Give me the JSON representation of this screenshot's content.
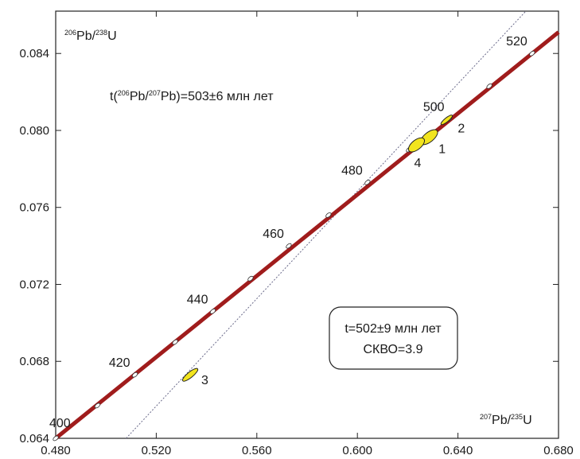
{
  "chart_data": {
    "type": "concordia",
    "x_axis": {
      "label_parts": [
        {
          "sup": "207"
        },
        {
          "text": "Pb/"
        },
        {
          "sup": "235"
        },
        {
          "text": "U"
        }
      ],
      "lim": [
        0.48,
        0.68
      ],
      "ticks": [
        0.48,
        0.52,
        0.56,
        0.6,
        0.64,
        0.68
      ],
      "tick_labels": [
        "0.480",
        "0.520",
        "0.560",
        "0.600",
        "0.640",
        "0.680"
      ]
    },
    "y_axis": {
      "label_parts": [
        {
          "sup": "206"
        },
        {
          "text": "Pb/"
        },
        {
          "sup": "238"
        },
        {
          "text": "U"
        }
      ],
      "lim": [
        0.064,
        0.0862
      ],
      "ticks": [
        0.064,
        0.068,
        0.072,
        0.076,
        0.08,
        0.084
      ],
      "tick_labels": [
        "0.064",
        "0.068",
        "0.072",
        "0.076",
        "0.080",
        "0.084"
      ]
    },
    "concordia": {
      "color": "#a01c1c",
      "age_markers": [
        {
          "age": 400,
          "x": 0.48,
          "y": 0.064,
          "label": "400"
        },
        {
          "age": 410,
          "x": 0.4966,
          "y": 0.0657,
          "label": ""
        },
        {
          "age": 420,
          "x": 0.5115,
          "y": 0.0673,
          "label": "420"
        },
        {
          "age": 430,
          "x": 0.5275,
          "y": 0.069,
          "label": ""
        },
        {
          "age": 440,
          "x": 0.5425,
          "y": 0.0706,
          "label": "440"
        },
        {
          "age": 450,
          "x": 0.5575,
          "y": 0.0723,
          "label": ""
        },
        {
          "age": 460,
          "x": 0.5727,
          "y": 0.074,
          "label": "460"
        },
        {
          "age": 470,
          "x": 0.5885,
          "y": 0.0756,
          "label": ""
        },
        {
          "age": 480,
          "x": 0.604,
          "y": 0.0773,
          "label": "480"
        },
        {
          "age": 490,
          "x": 0.6205,
          "y": 0.079,
          "label": ""
        },
        {
          "age": 500,
          "x": 0.6365,
          "y": 0.0806,
          "label": "500"
        },
        {
          "age": 510,
          "x": 0.6525,
          "y": 0.0823,
          "label": ""
        },
        {
          "age": 520,
          "x": 0.6695,
          "y": 0.084,
          "label": "520"
        }
      ]
    },
    "discordia": {
      "style": "dotted",
      "color": "#6a6a8a",
      "points": [
        [
          0.508,
          0.064
        ],
        [
          0.667,
          0.0862
        ]
      ]
    },
    "ellipses": [
      {
        "label": "1",
        "x": 0.6285,
        "y": 0.07965,
        "color": "#f2e41e"
      },
      {
        "label": "2",
        "x": 0.6355,
        "y": 0.08055,
        "color": "#f2e41e"
      },
      {
        "label": "3",
        "x": 0.5335,
        "y": 0.0673,
        "color": "#f2e41e"
      },
      {
        "label": "4",
        "x": 0.6235,
        "y": 0.07925,
        "color": "#f2e41e"
      }
    ],
    "annotations": {
      "pb_age": {
        "parts": [
          {
            "text": "t("
          },
          {
            "sup": "206"
          },
          {
            "text": "Pb/"
          },
          {
            "sup": "207"
          },
          {
            "text": "Pb)=503±6 млн лет"
          }
        ]
      },
      "box_line1": "t=502±9 млн лет",
      "box_line2": "СКВО=3.9"
    }
  }
}
